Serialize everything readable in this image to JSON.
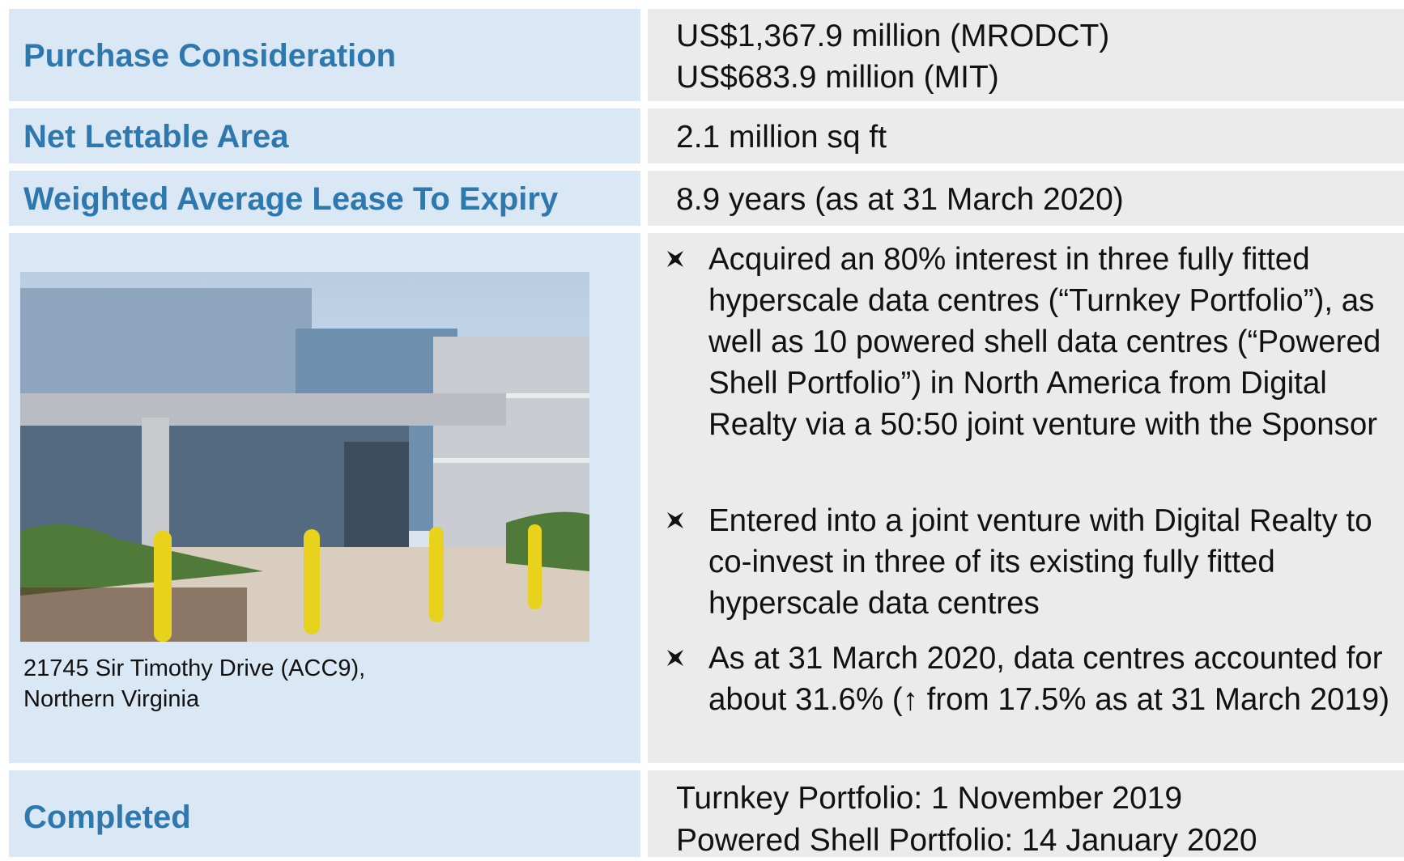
{
  "rows": [
    {
      "label": "Purchase Consideration",
      "value": [
        "US$1,367.9 million (MRODCT)",
        "US$683.9 million (MIT)"
      ]
    },
    {
      "label": "Net Lettable Area",
      "value": [
        "2.1 million sq ft"
      ]
    },
    {
      "label": "Weighted Average Lease To Expiry",
      "value": [
        "8.9 years (as at 31 March 2020)"
      ]
    },
    {
      "label": "Completed",
      "value": [
        "Turnkey Portfolio: 1 November 2019",
        "Powered Shell Portfolio: 14 January 2020"
      ]
    }
  ],
  "photo": {
    "caption": [
      "21745 Sir Timothy Drive (ACC9),",
      "Northern Virginia"
    ]
  },
  "bullets": [
    "Acquired an 80% interest in three fully fitted hyperscale data centres (“Turnkey Portfolio”), as well as 10 powered shell data centres (“Powered Shell Portfolio”) in North America from Digital Realty via a 50:50 joint venture with the Sponsor",
    "Entered into a joint venture with Digital Realty to co-invest in three of its existing fully fitted hyperscale data centres",
    "As at 31 March 2020, data centres accounted for about 31.6% (↑ from 17.5% as at 31 March 2019)"
  ]
}
